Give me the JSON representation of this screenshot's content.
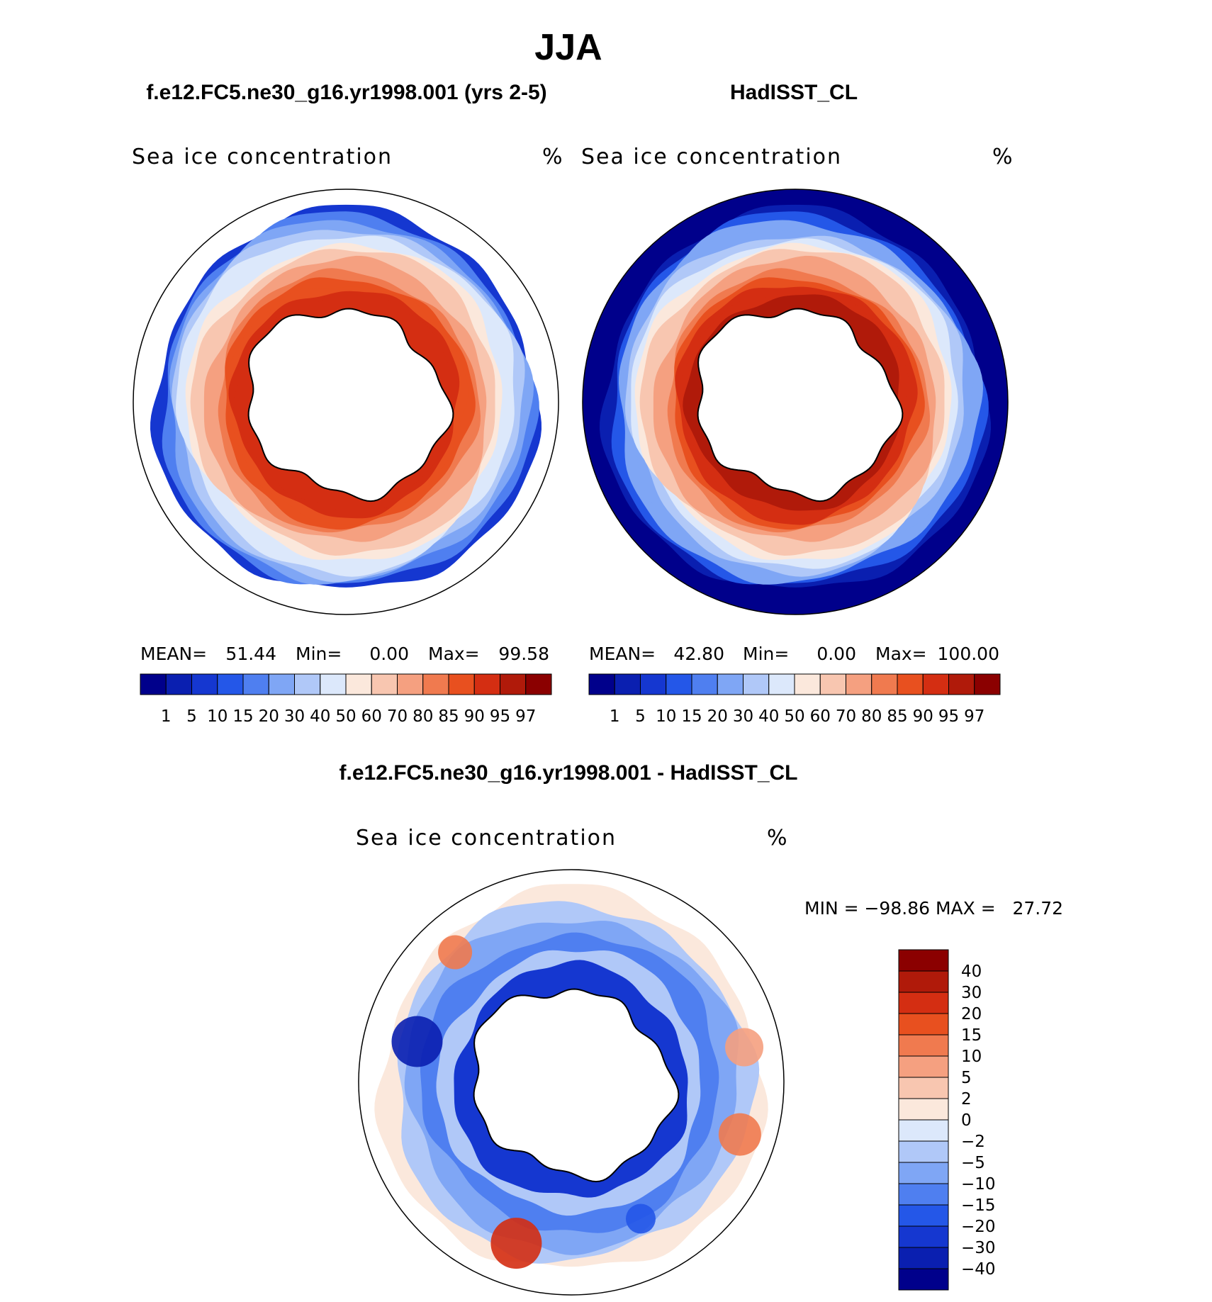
{
  "chart_data": {
    "type": "heatmap",
    "title": "JJA",
    "panels": [
      {
        "id": "model",
        "case_title": "f.e12.FC5.ne30_g16.yr1998.001 (yrs 2-5)",
        "variable": "Sea ice concentration",
        "units": "%",
        "stats_labels": [
          "MEAN=",
          "Min=",
          "Max="
        ],
        "stats_values": [
          "51.44",
          "0.00",
          "99.58"
        ],
        "stats": {
          "mean": 51.44,
          "min": 0.0,
          "max": 99.58
        },
        "colorbar_levels": [
          "1",
          "5",
          "10",
          "15",
          "20",
          "30",
          "40",
          "50",
          "60",
          "70",
          "80",
          "85",
          "90",
          "95",
          "97"
        ],
        "ring_profile": {
          "ocean_background": false,
          "peak": 93,
          "outer_edge": 8
        }
      },
      {
        "id": "obs",
        "case_title": "HadISST_CL",
        "variable": "Sea ice concentration",
        "units": "%",
        "stats_labels": [
          "MEAN=",
          "Min=",
          "Max="
        ],
        "stats_values": [
          "42.80",
          "0.00",
          "100.00"
        ],
        "stats": {
          "mean": 42.8,
          "min": 0.0,
          "max": 100.0
        },
        "colorbar_levels": [
          "1",
          "5",
          "10",
          "15",
          "20",
          "30",
          "40",
          "50",
          "60",
          "70",
          "80",
          "85",
          "90",
          "95",
          "97"
        ],
        "ring_profile": {
          "ocean_background": true,
          "peak": 96,
          "outer_edge": 1
        }
      },
      {
        "id": "diff",
        "case_title": "f.e12.FC5.ne30_g16.yr1998.001 - HadISST_CL",
        "variable": "Sea ice concentration",
        "units": "%",
        "minmax_text": "MIN = −98.86 MAX =   27.72",
        "stats": {
          "min": -98.86,
          "max": 27.72
        },
        "colorbar_levels": [
          "40",
          "30",
          "20",
          "15",
          "10",
          "5",
          "2",
          "0",
          "−2",
          "−5",
          "−10",
          "−15",
          "−20",
          "−30",
          "−40"
        ]
      }
    ],
    "color_scale": [
      "#00008b",
      "#0a1fb0",
      "#1537d0",
      "#2457e8",
      "#4f7ff0",
      "#7fa6f5",
      "#b0c8f8",
      "#dce8fb",
      "#fbe8dc",
      "#f8c6b0",
      "#f5a080",
      "#f07a4f",
      "#e8501f",
      "#d42e12",
      "#b01a0a",
      "#8b0000"
    ]
  }
}
